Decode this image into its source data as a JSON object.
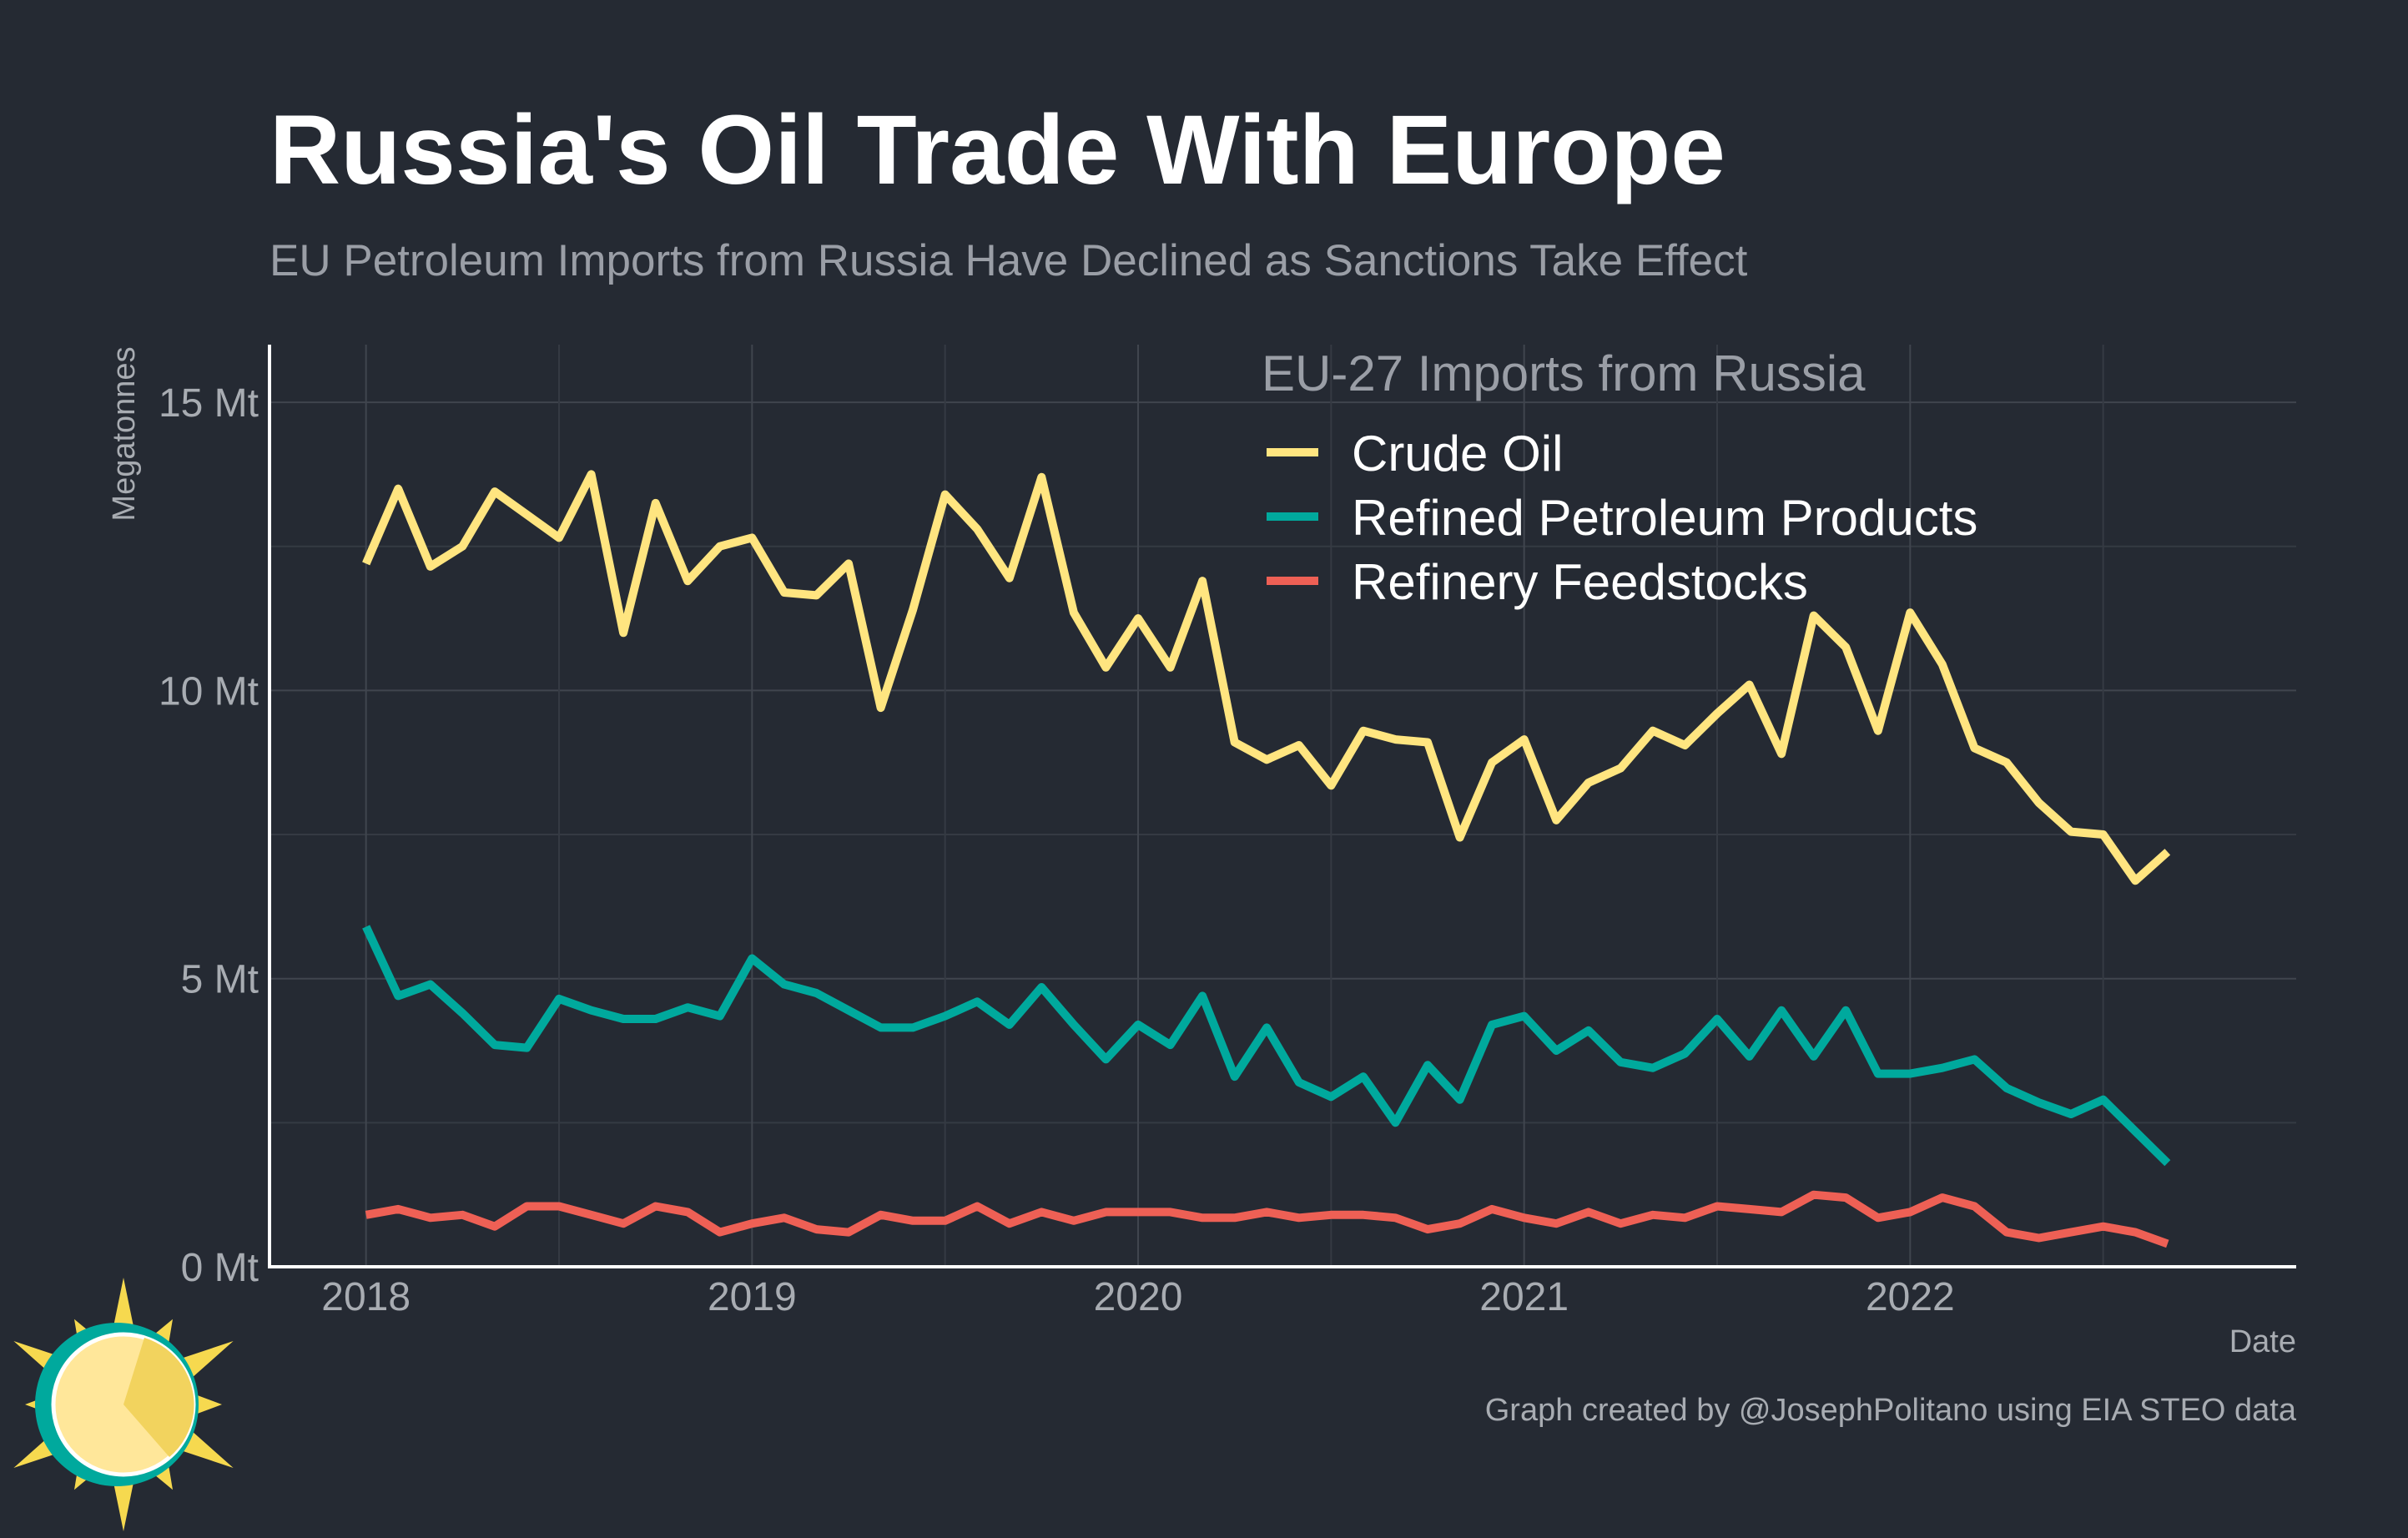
{
  "title": "Russia's Oil Trade With Europe",
  "subtitle": "EU Petroleum Imports from Russia Have Declined as Sanctions Take Effect",
  "caption": "Graph created by @JosephPolitano using EIA STEO data",
  "colors": {
    "background": "#252A33",
    "crude": "#FFE580",
    "refined": "#00A99D",
    "feedstocks": "#EE6055"
  },
  "chart_data": {
    "type": "line",
    "xlabel": "Date",
    "ylabel": "Megatonnes",
    "ylim": [
      0,
      16
    ],
    "xlim": [
      "2017-10",
      "2023-01"
    ],
    "yticks": [
      0,
      5,
      10,
      15
    ],
    "ytick_labels": [
      "0 Mt",
      "5 Mt",
      "10 Mt",
      "15 Mt"
    ],
    "xtick_labels": [
      "2018",
      "2019",
      "2020",
      "2021",
      "2022"
    ],
    "grid": true,
    "legend": {
      "title": "EU-27 Imports from Russia",
      "placement": "top-right"
    },
    "x": [
      "2018-01",
      "2018-02",
      "2018-03",
      "2018-04",
      "2018-05",
      "2018-06",
      "2018-07",
      "2018-08",
      "2018-09",
      "2018-10",
      "2018-11",
      "2018-12",
      "2019-01",
      "2019-02",
      "2019-03",
      "2019-04",
      "2019-05",
      "2019-06",
      "2019-07",
      "2019-08",
      "2019-09",
      "2019-10",
      "2019-11",
      "2019-12",
      "2020-01",
      "2020-02",
      "2020-03",
      "2020-04",
      "2020-05",
      "2020-06",
      "2020-07",
      "2020-08",
      "2020-09",
      "2020-10",
      "2020-11",
      "2020-12",
      "2021-01",
      "2021-02",
      "2021-03",
      "2021-04",
      "2021-05",
      "2021-06",
      "2021-07",
      "2021-08",
      "2021-09",
      "2021-10",
      "2021-11",
      "2021-12",
      "2022-01",
      "2022-02",
      "2022-03",
      "2022-04",
      "2022-05",
      "2022-06",
      "2022-07",
      "2022-08",
      "2022-09"
    ],
    "series": [
      {
        "name": "Crude Oil",
        "color": "#FFE580",
        "values": [
          12.2,
          13.5,
          12.15,
          12.5,
          13.45,
          13.05,
          12.65,
          13.75,
          11.0,
          13.25,
          11.9,
          12.5,
          12.65,
          11.7,
          11.65,
          12.2,
          9.7,
          11.4,
          13.4,
          12.8,
          11.95,
          13.7,
          11.35,
          10.4,
          11.25,
          10.4,
          11.9,
          9.1,
          8.8,
          9.05,
          8.35,
          9.3,
          9.15,
          9.1,
          7.45,
          8.75,
          9.15,
          7.75,
          8.4,
          8.65,
          9.3,
          9.05,
          9.6,
          10.1,
          8.9,
          11.3,
          10.75,
          9.3,
          11.35,
          10.45,
          9.0,
          8.75,
          8.05,
          7.55,
          7.5,
          6.7,
          7.2
        ]
      },
      {
        "name": "Refined Petroleum Products",
        "color": "#00A99D",
        "values": [
          5.9,
          4.7,
          4.9,
          4.4,
          3.85,
          3.8,
          4.65,
          4.45,
          4.3,
          4.3,
          4.5,
          4.35,
          5.35,
          4.9,
          4.75,
          4.45,
          4.15,
          4.15,
          4.35,
          4.6,
          4.2,
          4.85,
          4.2,
          3.6,
          4.2,
          3.85,
          4.7,
          3.3,
          4.15,
          3.2,
          2.95,
          3.3,
          2.5,
          3.5,
          2.9,
          4.2,
          4.35,
          3.75,
          4.1,
          3.55,
          3.45,
          3.7,
          4.3,
          3.65,
          4.45,
          3.65,
          4.45,
          3.35,
          3.35,
          3.45,
          3.6,
          3.1,
          2.85,
          2.65,
          2.9,
          2.35,
          1.8
        ]
      },
      {
        "name": "Refinery Feedstocks",
        "color": "#EE6055",
        "values": [
          0.9,
          1.0,
          0.85,
          0.9,
          0.7,
          1.05,
          1.05,
          0.9,
          0.75,
          1.05,
          0.95,
          0.6,
          0.75,
          0.85,
          0.65,
          0.6,
          0.9,
          0.8,
          0.8,
          1.05,
          0.75,
          0.95,
          0.8,
          0.95,
          0.95,
          0.95,
          0.85,
          0.85,
          0.95,
          0.85,
          0.9,
          0.9,
          0.85,
          0.65,
          0.75,
          1.0,
          0.85,
          0.75,
          0.95,
          0.75,
          0.9,
          0.85,
          1.05,
          1.0,
          0.95,
          1.25,
          1.2,
          0.85,
          0.95,
          1.2,
          1.05,
          0.6,
          0.5,
          0.6,
          0.7,
          0.6,
          0.4
        ]
      }
    ]
  }
}
